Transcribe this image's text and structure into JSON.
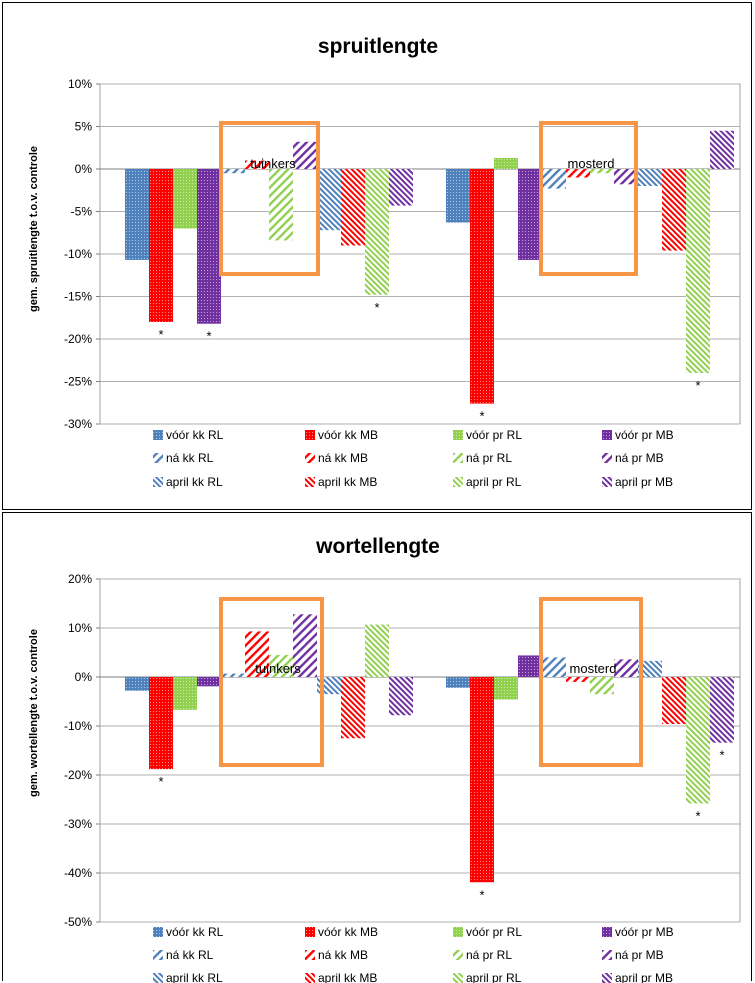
{
  "chart_data": [
    {
      "type": "bar",
      "title": "spruitlengte",
      "ylabel": "gem. spruitlengte t.o.v. controle",
      "ylim": [
        -30,
        10
      ],
      "yticks": [
        "10%",
        "5%",
        "0%",
        "-5%",
        "-10%",
        "-15%",
        "-20%",
        "-25%",
        "-30%"
      ],
      "legend": [
        "vóór  kk RL",
        "vóór  kk MB",
        "vóór  pr RL",
        "vóór pr MB",
        "ná  kk RL",
        "ná  kk MB",
        "ná  pr RL",
        "ná pr MB",
        "april  kk RL",
        "april kk MB",
        "april pr RL",
        "april pr MB"
      ],
      "groups": [
        {
          "label": "tuinkers",
          "values": [
            -10.7,
            -18.0,
            -7.0,
            -18.2,
            -0.5,
            1.0,
            -8.4,
            3.2,
            -7.2,
            -9.0,
            -14.8,
            -4.3
          ],
          "significant": [
            false,
            true,
            false,
            true,
            false,
            false,
            false,
            false,
            false,
            false,
            true,
            false
          ]
        },
        {
          "label": "mosterd",
          "values": [
            -6.3,
            -27.6,
            1.3,
            -10.7,
            -2.3,
            -1.0,
            -0.5,
            -1.8,
            -2.0,
            -9.6,
            -24.0,
            4.5
          ],
          "significant": [
            false,
            true,
            false,
            false,
            false,
            false,
            false,
            false,
            false,
            false,
            true,
            false
          ]
        }
      ]
    },
    {
      "type": "bar",
      "title": "wortellengte",
      "ylabel": "gem. wortellengte t.o.v. controle",
      "ylim": [
        -50,
        20
      ],
      "yticks": [
        "20%",
        "10%",
        "0%",
        "-10%",
        "-20%",
        "-30%",
        "-40%",
        "-50%"
      ],
      "legend": [
        "vóór  kk RL",
        "vóór  kk MB",
        "vóór  pr RL",
        "vóór pr MB",
        "ná  kk RL",
        "ná  kk MB",
        "ná  pr RL",
        "ná pr MB",
        "april  kk RL",
        "april kk MB",
        "april pr RL",
        "april pr MB"
      ],
      "groups": [
        {
          "label": "tuinkers",
          "values": [
            -2.8,
            -18.8,
            -6.7,
            -1.9,
            0.7,
            9.3,
            4.5,
            12.8,
            -3.5,
            -12.5,
            10.7,
            -7.8
          ],
          "significant": [
            false,
            true,
            false,
            false,
            false,
            false,
            false,
            false,
            false,
            false,
            false,
            false
          ]
        },
        {
          "label": "mosterd",
          "values": [
            -2.2,
            -41.9,
            -4.6,
            4.4,
            4.0,
            -1.0,
            -3.5,
            3.6,
            3.3,
            -9.6,
            -25.8,
            -13.4
          ],
          "significant": [
            false,
            true,
            false,
            false,
            false,
            false,
            false,
            false,
            false,
            false,
            true,
            true
          ]
        }
      ]
    }
  ],
  "colors": {
    "kk_RL": "#4f81bd",
    "kk_MB": "#ff0000",
    "pr_RL": "#92d050",
    "pr_MB": "#7030a0",
    "box": "#f79646"
  },
  "significance_marker": "*"
}
